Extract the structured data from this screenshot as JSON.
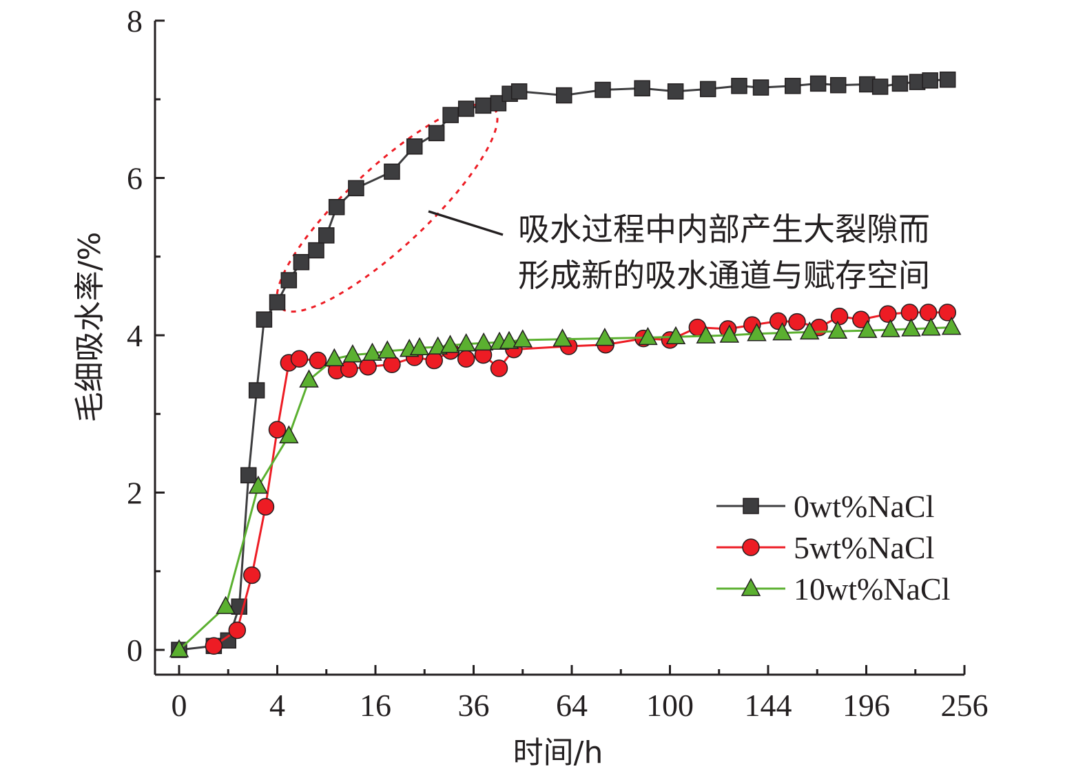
{
  "chart_data": {
    "type": "line",
    "title": "",
    "xlabel": "时间/h",
    "ylabel": "毛细吸水率/%",
    "x_scale": "sqrt",
    "xlim": [
      0,
      256
    ],
    "ylim": [
      0,
      8
    ],
    "x_ticks": [
      0,
      4,
      16,
      36,
      64,
      100,
      144,
      196,
      256
    ],
    "x_tick_labels": [
      "0",
      "4",
      "16",
      "36",
      "64",
      "100",
      "144",
      "196",
      "256"
    ],
    "y_ticks": [
      0,
      2,
      4,
      6,
      8
    ],
    "y_tick_labels": [
      "0",
      "2",
      "4",
      "6",
      "8"
    ],
    "grid": false,
    "legend_position": "lower-right",
    "annotation": {
      "lines": [
        "吸水过程中内部产生大裂隙而",
        "形成新的吸水通道与赋存空间"
      ]
    },
    "series": [
      {
        "name": "0wt%NaCl",
        "color": "#3d3d3f",
        "marker": "square",
        "x": [
          0,
          0.5,
          1,
          1.5,
          2,
          2.5,
          3,
          4,
          5,
          6.2,
          7.8,
          9,
          10.3,
          13,
          18.8,
          23,
          27.5,
          30.6,
          34.2,
          38.4,
          42.3,
          45.4,
          48,
          61.5,
          74.5,
          89,
          102.3,
          116.1,
          130.2,
          140.5,
          156.3,
          169.5,
          180.3,
          196.5,
          204,
          215.7,
          226.2,
          234.1,
          245.2
        ],
        "y": [
          0,
          0.05,
          0.12,
          0.55,
          2.22,
          3.3,
          4.2,
          4.42,
          4.7,
          4.93,
          5.08,
          5.27,
          5.63,
          5.87,
          6.08,
          6.4,
          6.57,
          6.8,
          6.88,
          6.92,
          6.95,
          7.07,
          7.1,
          7.05,
          7.12,
          7.14,
          7.1,
          7.13,
          7.17,
          7.15,
          7.17,
          7.2,
          7.18,
          7.19,
          7.16,
          7.2,
          7.22,
          7.24,
          7.25
        ]
      },
      {
        "name": "5wt%NaCl",
        "color": "#ed1c24",
        "marker": "circle",
        "x": [
          0.5,
          1.4,
          2.2,
          3.1,
          4,
          5,
          6,
          8,
          10.3,
          12,
          14.8,
          18.8,
          23,
          27,
          30.6,
          34.2,
          38.4,
          42.5,
          46.5,
          63,
          75.5,
          89.5,
          100,
          111.5,
          125,
          136.3,
          149,
          158.5,
          170,
          181,
          193,
          208.5,
          221.5,
          233,
          245
        ],
        "y": [
          0.05,
          0.25,
          0.95,
          1.82,
          2.8,
          3.65,
          3.7,
          3.68,
          3.55,
          3.57,
          3.6,
          3.63,
          3.72,
          3.68,
          3.8,
          3.7,
          3.75,
          3.58,
          3.82,
          3.86,
          3.88,
          3.96,
          3.94,
          4.1,
          4.08,
          4.13,
          4.18,
          4.17,
          4.1,
          4.24,
          4.2,
          4.27,
          4.29,
          4.29,
          4.29
        ]
      },
      {
        "name": "10wt%NaCl",
        "color": "#5bb030",
        "marker": "triangle",
        "x": [
          0,
          0.9,
          2.6,
          5,
          7,
          10,
          12.5,
          15.5,
          18,
          22,
          24,
          27.8,
          30.5,
          34.2,
          38.5,
          42.6,
          45.2,
          49,
          61,
          75.2,
          91.2,
          102.4,
          115.2,
          125.7,
          138.5,
          151,
          165,
          180,
          196.7,
          210,
          222.4,
          234.6,
          247.6
        ],
        "y": [
          0,
          0.55,
          2.08,
          2.72,
          3.43,
          3.7,
          3.75,
          3.77,
          3.8,
          3.82,
          3.84,
          3.85,
          3.87,
          3.89,
          3.9,
          3.91,
          3.92,
          3.94,
          3.95,
          3.96,
          3.97,
          3.98,
          3.99,
          4.0,
          4.02,
          4.03,
          4.04,
          4.05,
          4.06,
          4.07,
          4.08,
          4.09,
          4.1
        ]
      }
    ]
  }
}
